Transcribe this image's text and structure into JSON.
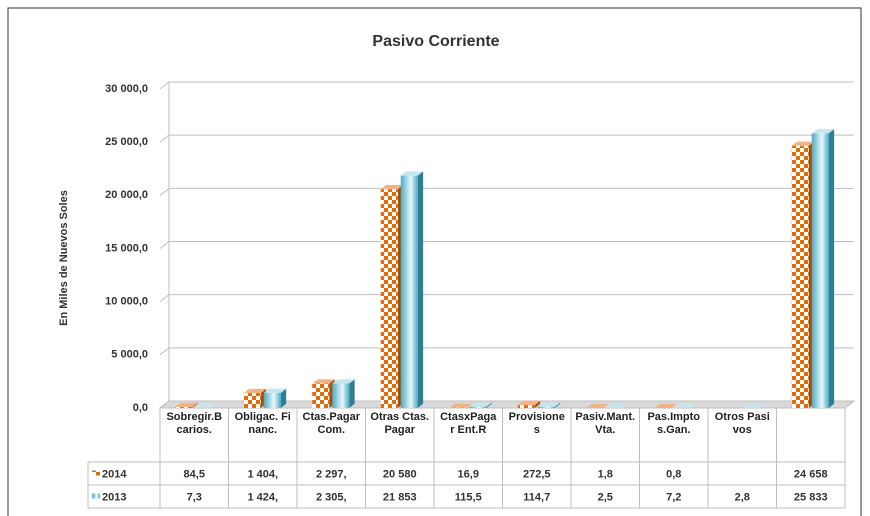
{
  "chart_data": {
    "type": "bar3d",
    "title": "Pasivo Corriente",
    "y_label": "En Miles de Nuevos Soles",
    "categories": [
      "Sobregir.Bcarios.",
      "Obligac. Financ.",
      "Ctas.Pagar Com.",
      "Otras Ctas.Pagar",
      "CtasxPagar Ent.R",
      "Provisiones",
      "Pasiv.Mant.Vta.",
      "Pas.Imptos.Gan.",
      "Otros Pasivos",
      null
    ],
    "series": [
      {
        "name": "2014",
        "color": "#e36c0a",
        "pattern": "checkerboard",
        "values": [
          84.5,
          1404,
          2297,
          20580,
          16.9,
          272.5,
          1.8,
          0.8,
          null,
          24658
        ],
        "value_labels": [
          "84,5",
          "1 404,",
          "2 297,",
          "20 580",
          "16,9",
          "272,5",
          "1,8",
          "0,8",
          null,
          "24 658"
        ]
      },
      {
        "name": "2013",
        "color": "#4bacc6",
        "pattern": "gradient",
        "values": [
          7.3,
          1424,
          2305,
          21853,
          115.5,
          114.7,
          2.5,
          7.2,
          2.8,
          25833
        ],
        "value_labels": [
          "7,3",
          "1 424,",
          "2 305,",
          "21 853",
          "115,5",
          "114,7",
          "2,5",
          "7,2",
          "2,8",
          "25 833"
        ]
      }
    ],
    "ylim": [
      0,
      30000
    ],
    "yticks": [
      {
        "value": 0,
        "label": "0,0"
      },
      {
        "value": 5000,
        "label": "5 000,0"
      },
      {
        "value": 10000,
        "label": "10 000,0"
      },
      {
        "value": 15000,
        "label": "15 000,0"
      },
      {
        "value": 20000,
        "label": "20 000,0"
      },
      {
        "value": 25000,
        "label": "25 000,0"
      },
      {
        "value": 30000,
        "label": "30 000,0"
      }
    ],
    "grid": true,
    "legend": "table"
  }
}
